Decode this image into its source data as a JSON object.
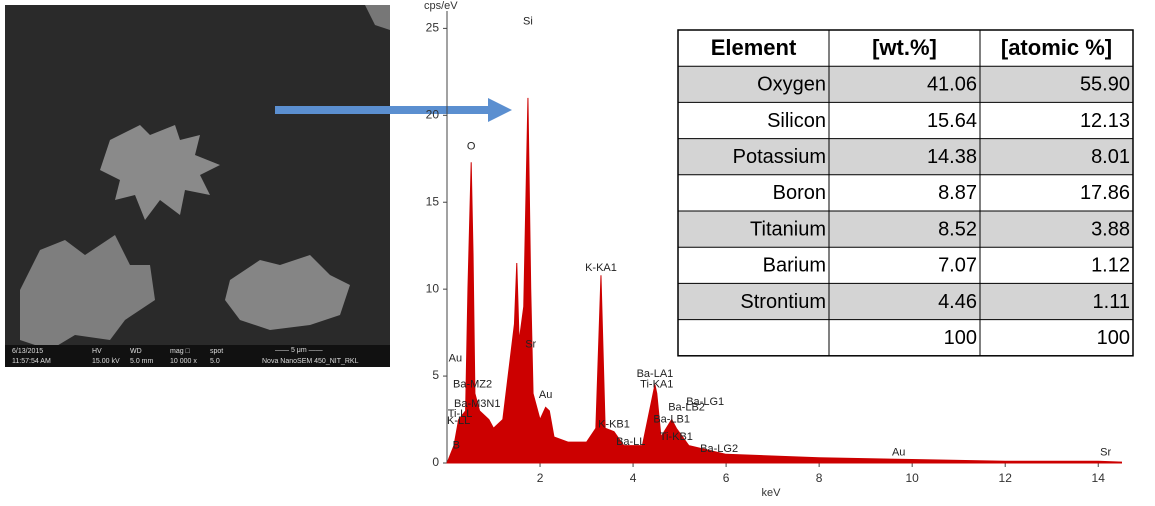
{
  "sem_image": {
    "info_bar": [
      "6/13/2015",
      "11:57:54 AM",
      "HV",
      "15.00 kV",
      "WD",
      "5.0 mm",
      "mag □",
      "10 000 x",
      "spot",
      "5.0",
      "—— 5 μm ——",
      "Nova NanoSEM 450_NIT_RKL"
    ]
  },
  "chart_data": {
    "type": "line",
    "y_label": "cps/eV",
    "x_label": "keV",
    "xlim": [
      0,
      14.5
    ],
    "ylim": [
      0,
      26
    ],
    "xticks": [
      2,
      4,
      6,
      8,
      10,
      12,
      14
    ],
    "yticks": [
      0,
      5,
      10,
      15,
      20,
      25
    ],
    "x": [
      0,
      0.15,
      0.25,
      0.4,
      0.45,
      0.52,
      0.56,
      0.6,
      0.7,
      0.9,
      1.0,
      1.2,
      1.45,
      1.5,
      1.55,
      1.65,
      1.74,
      1.8,
      1.85,
      2.0,
      2.12,
      2.2,
      2.3,
      2.6,
      3.0,
      3.2,
      3.31,
      3.4,
      3.59,
      3.8,
      4.2,
      4.47,
      4.51,
      4.6,
      4.83,
      4.93,
      5.2,
      6,
      8,
      10,
      12,
      14,
      14.5
    ],
    "series": [
      {
        "color": "#cc0000",
        "values": [
          0,
          1,
          2.5,
          3,
          10,
          17.3,
          12,
          4,
          3,
          2.5,
          2,
          2.5,
          8,
          11.5,
          7,
          9,
          21,
          10,
          4,
          2.5,
          3.2,
          3,
          1.5,
          1.2,
          1.2,
          2,
          10.8,
          2,
          1.8,
          1,
          1,
          4.5,
          4,
          1.5,
          2.5,
          2,
          1,
          0.5,
          0.3,
          0.2,
          0.1,
          0.1,
          0.05
        ]
      }
    ],
    "annotations": [
      {
        "text": "Si",
        "x": 1.74,
        "y": 25.4
      },
      {
        "text": "O",
        "x": 0.52,
        "y": 18.2
      },
      {
        "text": "Au",
        "x": 0.18,
        "y": 6.0
      },
      {
        "text": "Ba-MZ2",
        "x": 0.55,
        "y": 4.5
      },
      {
        "text": "Ba-M3N1",
        "x": 0.65,
        "y": 3.4
      },
      {
        "text": "Ti-LL",
        "x": 0.28,
        "y": 2.8
      },
      {
        "text": "K-LL",
        "x": 0.25,
        "y": 2.4
      },
      {
        "text": "B",
        "x": 0.2,
        "y": 1.0
      },
      {
        "text": "Sr",
        "x": 1.8,
        "y": 6.8
      },
      {
        "text": "Au",
        "x": 2.12,
        "y": 3.9
      },
      {
        "text": "K-KA1",
        "x": 3.31,
        "y": 11.2
      },
      {
        "text": "K-KB1",
        "x": 3.59,
        "y": 2.2
      },
      {
        "text": "Ba-LL",
        "x": 3.95,
        "y": 1.2
      },
      {
        "text": "Ba-LA1",
        "x": 4.47,
        "y": 5.1
      },
      {
        "text": "Ti-KA1",
        "x": 4.51,
        "y": 4.5
      },
      {
        "text": "Ba-LB2",
        "x": 5.15,
        "y": 3.2
      },
      {
        "text": "Ba-LG1",
        "x": 5.55,
        "y": 3.5
      },
      {
        "text": "Ba-LB1",
        "x": 4.83,
        "y": 2.5
      },
      {
        "text": "Ti-KB1",
        "x": 4.93,
        "y": 1.5
      },
      {
        "text": "Ba-LG2",
        "x": 5.85,
        "y": 0.8
      },
      {
        "text": "Au",
        "x": 9.71,
        "y": 0.6
      },
      {
        "text": "Sr",
        "x": 14.16,
        "y": 0.6
      }
    ]
  },
  "table": {
    "header": [
      "Element",
      "[wt.%]",
      "[atomic %]"
    ],
    "rows": [
      [
        "Oxygen",
        "41.06",
        "55.90"
      ],
      [
        "Silicon",
        "15.64",
        "12.13"
      ],
      [
        "Potassium",
        "14.38",
        "8.01"
      ],
      [
        "Boron",
        "8.87",
        "17.86"
      ],
      [
        "Titanium",
        "8.52",
        "3.88"
      ],
      [
        "Barium",
        "7.07",
        "1.12"
      ],
      [
        "Strontium",
        "4.46",
        "1.11"
      ]
    ],
    "total": [
      "100",
      "100"
    ]
  }
}
